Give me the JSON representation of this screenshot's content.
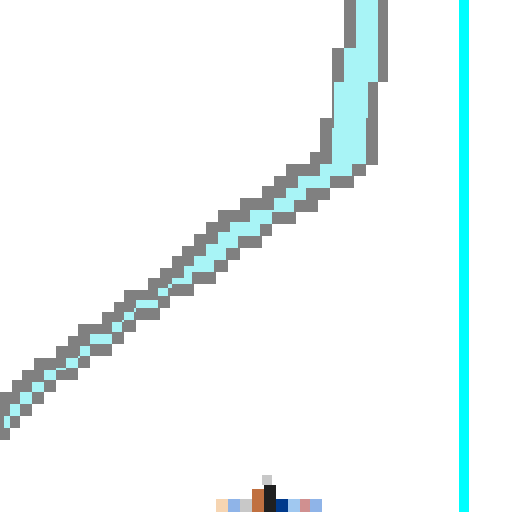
{
  "canvas": {
    "background": "#ffffff"
  },
  "stroke": {
    "fill_color": "#a8f4f6",
    "outline_color": "#808080"
  },
  "guide": {
    "color": "#00ffff"
  },
  "cursor": {
    "icon": "cursor-icon",
    "colors": [
      "#f6d5b2",
      "#8fb4e8",
      "#c8c8c8",
      "#c07040",
      "#202020",
      "#003a8c",
      "#a0c8f0",
      "#d09090"
    ]
  }
}
